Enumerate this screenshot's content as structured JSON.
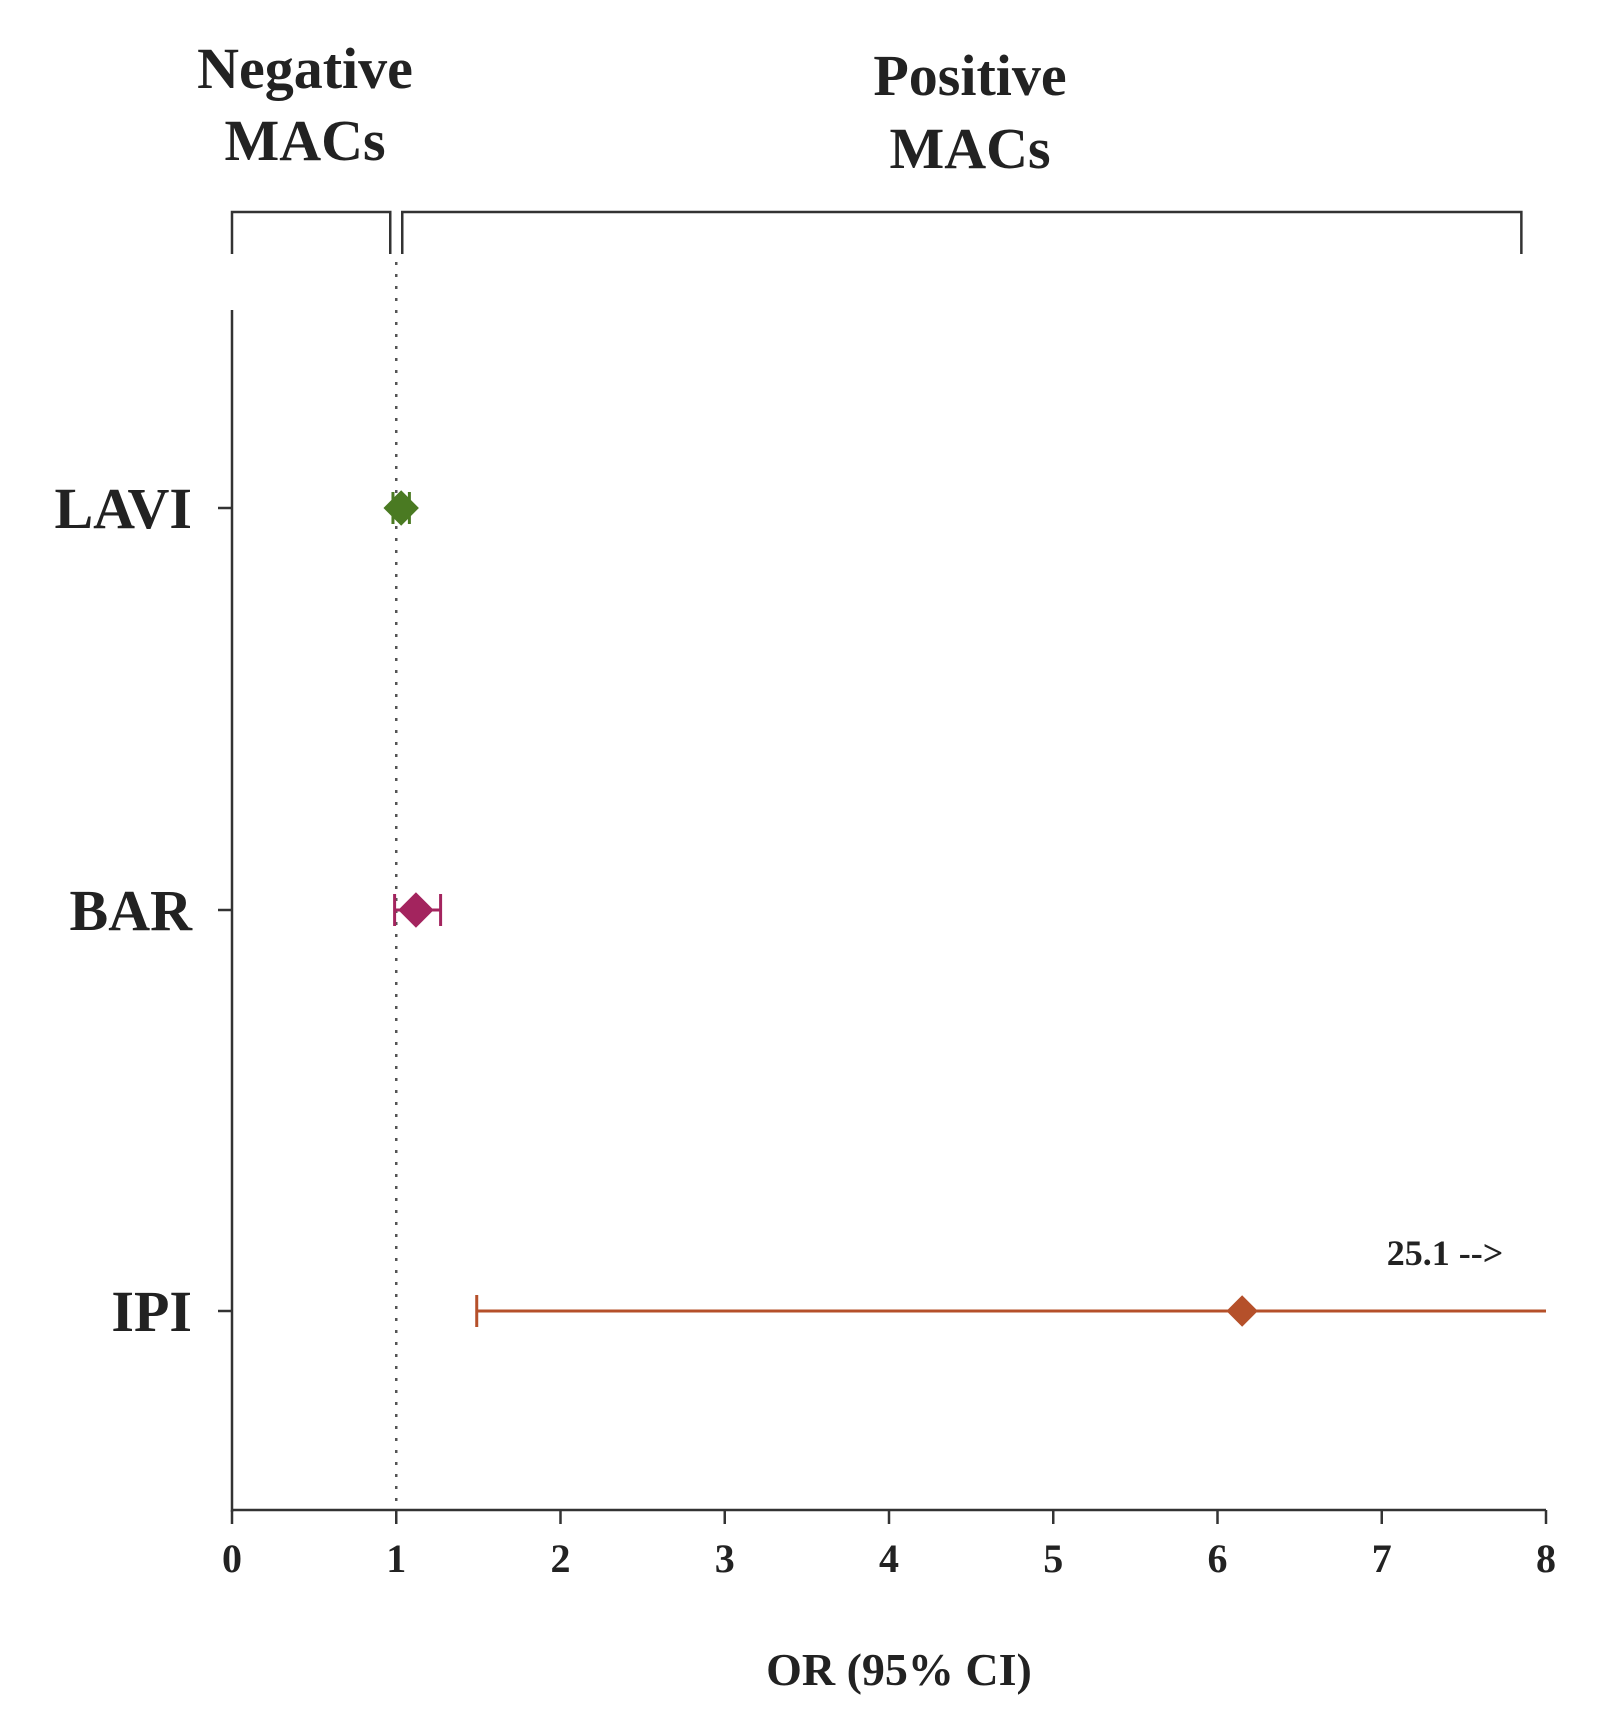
{
  "chart_data": {
    "type": "forest",
    "xlabel": "OR (95% CI)",
    "xlim": [
      0,
      8
    ],
    "xticks": [
      0,
      1,
      2,
      3,
      4,
      5,
      6,
      7,
      8
    ],
    "reference_line": 1,
    "group_labels": {
      "left": [
        "Negative",
        "MACs"
      ],
      "right": [
        "Positive",
        "MACs"
      ]
    },
    "categories": [
      "LAVI",
      "BAR",
      "IPI"
    ],
    "points": [
      {
        "label": "LAVI",
        "or": 1.03,
        "ci_low": 0.98,
        "ci_high": 1.08,
        "color": "#4a7a22"
      },
      {
        "label": "BAR",
        "or": 1.12,
        "ci_low": 0.99,
        "ci_high": 1.27,
        "color": "#a3245e"
      },
      {
        "label": "IPI",
        "or": 6.15,
        "ci_low": 1.49,
        "ci_high": 25.1,
        "color": "#b5502a",
        "truncated": true,
        "annotation": "25.1 -->"
      }
    ]
  }
}
